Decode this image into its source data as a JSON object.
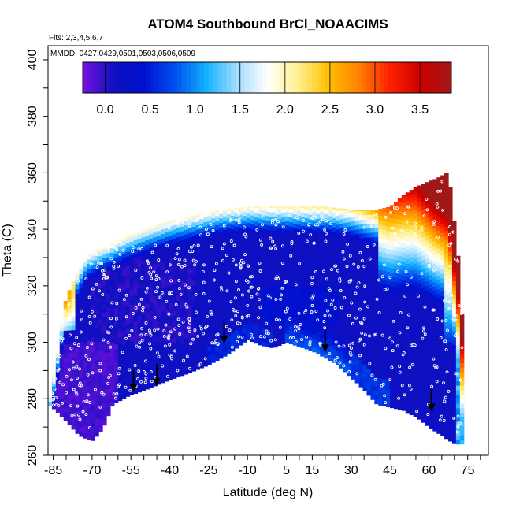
{
  "chart_data": {
    "type": "heatmap",
    "title": "ATOM4 Southbound BrCl_NOAACIMS",
    "subtitle_flights": "Flts: 2,3,4,5,6,7",
    "subtitle_dates": "MMDD: 0427,0429,0501,0503,0506,0509",
    "xlabel": "Latitude (deg N)",
    "ylabel": "Theta (C)",
    "xlim": [
      -87,
      83
    ],
    "ylim": [
      260,
      405
    ],
    "x_tick_labels": [
      "-85",
      "-70",
      "-55",
      "-40",
      "-25",
      "-10",
      "5",
      "15",
      "30",
      "45",
      "60",
      "75"
    ],
    "x_tick_values": [
      -85,
      -70,
      -55,
      -40,
      -25,
      -10,
      5,
      15,
      30,
      45,
      60,
      75
    ],
    "y_tick_labels": [
      "260",
      "280",
      "300",
      "320",
      "340",
      "360",
      "380",
      "400"
    ],
    "y_tick_values": [
      260,
      280,
      300,
      320,
      340,
      360,
      380,
      400
    ],
    "colorbar": {
      "range": [
        -0.25,
        3.85
      ],
      "tick_labels": [
        "0.0",
        "0.5",
        "1.0",
        "1.5",
        "2.0",
        "2.5",
        "3.0",
        "3.5"
      ],
      "tick_values": [
        0.0,
        0.5,
        1.0,
        1.5,
        2.0,
        2.5,
        3.0,
        3.5
      ],
      "colors": [
        "#7a10e0",
        "#1010c0",
        "#0010d0",
        "#0050f0",
        "#10b0ff",
        "#a0dcff",
        "#ffffff",
        "#fff090",
        "#ffc000",
        "#ff8000",
        "#ff2000",
        "#cc0000",
        "#a01818"
      ]
    },
    "envelope_top": [
      [
        -87,
        278
      ],
      [
        -84,
        292
      ],
      [
        -82,
        305
      ],
      [
        -80,
        316
      ],
      [
        -76,
        324
      ],
      [
        -72,
        331
      ],
      [
        -65,
        334
      ],
      [
        -58,
        337
      ],
      [
        -50,
        340
      ],
      [
        -40,
        343
      ],
      [
        -30,
        345
      ],
      [
        -20,
        347
      ],
      [
        -10,
        348
      ],
      [
        0,
        348
      ],
      [
        10,
        348
      ],
      [
        20,
        348
      ],
      [
        30,
        347
      ],
      [
        40,
        347
      ],
      [
        45,
        348
      ],
      [
        50,
        352
      ],
      [
        55,
        355
      ],
      [
        60,
        357
      ],
      [
        63,
        358
      ],
      [
        67,
        360
      ],
      [
        69,
        352
      ],
      [
        70,
        340
      ],
      [
        72,
        325
      ],
      [
        73,
        305
      ],
      [
        73,
        280
      ]
    ],
    "envelope_bottom": [
      [
        -87,
        278
      ],
      [
        -84,
        276
      ],
      [
        -80,
        272
      ],
      [
        -75,
        267
      ],
      [
        -70,
        265
      ],
      [
        -66,
        269
      ],
      [
        -62,
        278
      ],
      [
        -56,
        281
      ],
      [
        -50,
        283
      ],
      [
        -42,
        286
      ],
      [
        -33,
        289
      ],
      [
        -25,
        292
      ],
      [
        -17,
        296
      ],
      [
        -10,
        301
      ],
      [
        -5,
        299
      ],
      [
        0,
        298
      ],
      [
        5,
        300
      ],
      [
        15,
        297
      ],
      [
        25,
        292
      ],
      [
        33,
        285
      ],
      [
        40,
        278
      ],
      [
        45,
        277
      ],
      [
        50,
        276
      ],
      [
        56,
        273
      ],
      [
        60,
        270
      ],
      [
        65,
        267
      ],
      [
        70,
        264
      ],
      [
        73,
        264
      ]
    ],
    "high_value_regions": [
      {
        "lat": -82,
        "theta": 318,
        "value": 3.2
      },
      {
        "lat": 64,
        "theta": 350,
        "value": 3.4
      },
      {
        "lat": 68,
        "theta": 356,
        "value": 3.6
      },
      {
        "lat": 55,
        "theta": 345,
        "value": 2.6
      },
      {
        "lat": 45,
        "theta": 340,
        "value": 1.8
      }
    ],
    "arrows": [
      {
        "lat": -54,
        "theta": 283
      },
      {
        "lat": -45,
        "theta": 285
      },
      {
        "lat": -19,
        "theta": 300
      },
      {
        "lat": 20,
        "theta": 297
      },
      {
        "lat": 61,
        "theta": 276
      }
    ]
  }
}
